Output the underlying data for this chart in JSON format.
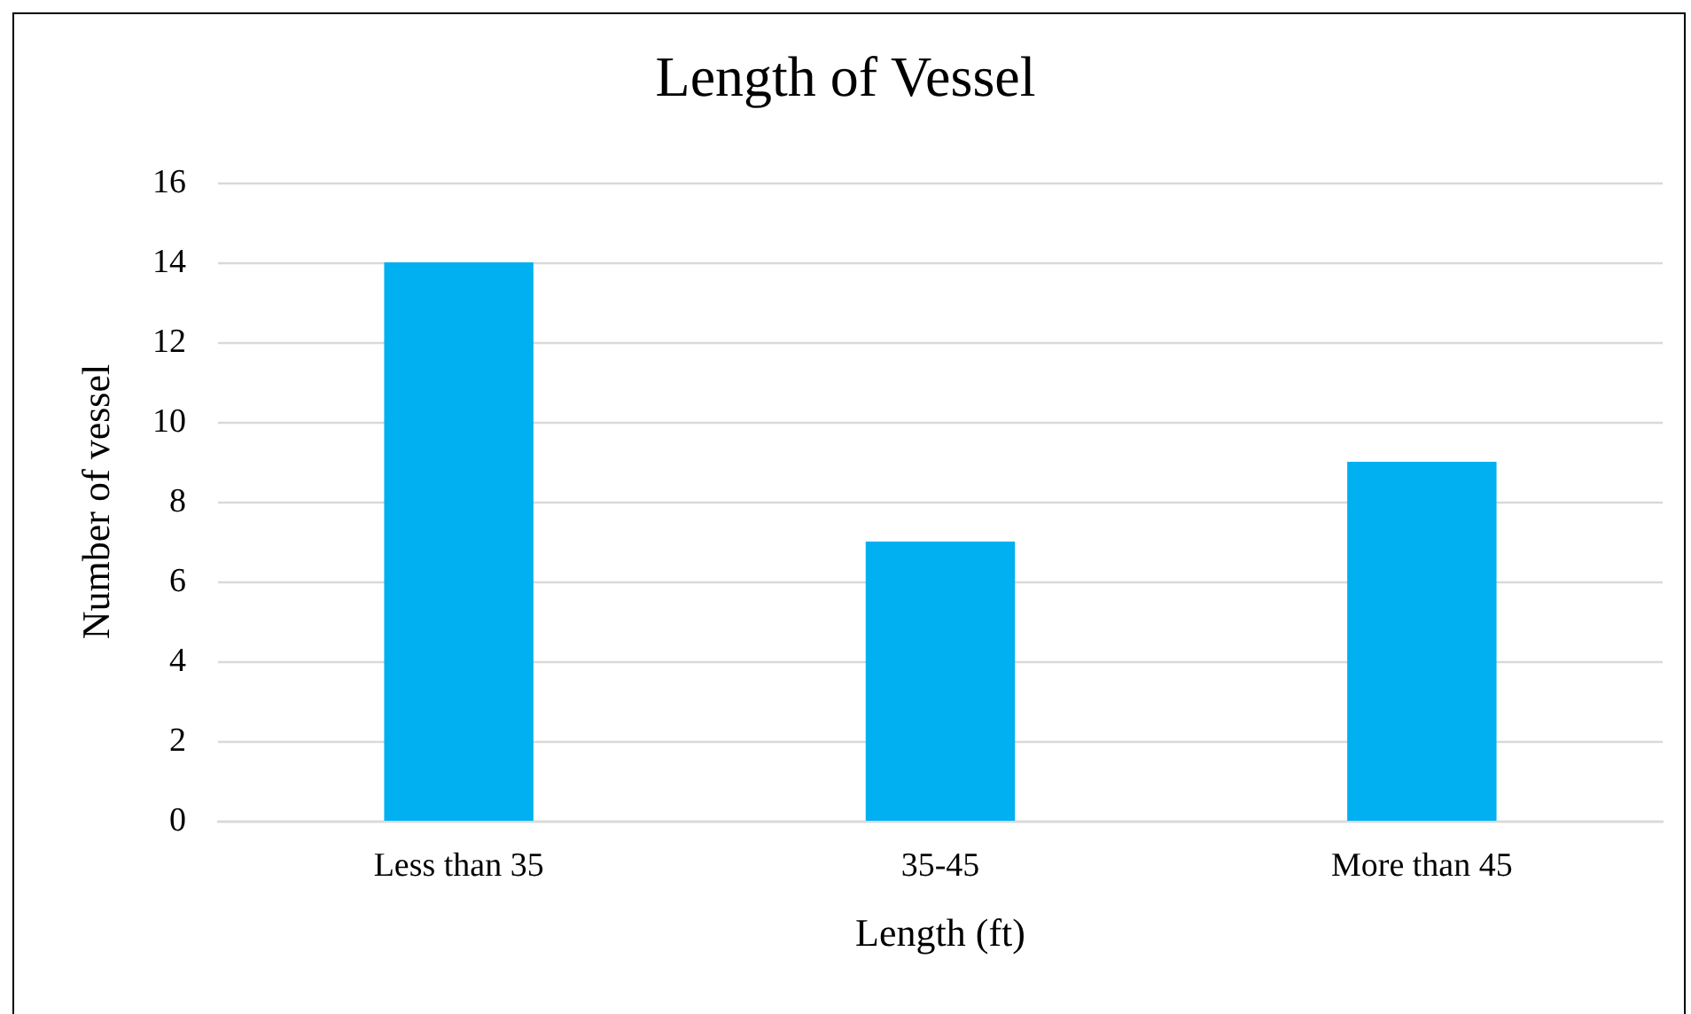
{
  "chart_data": {
    "type": "bar",
    "title": "Length of Vessel",
    "xlabel": "Length (ft)",
    "ylabel": "Number of vessel",
    "categories": [
      "Less than 35",
      "35-45",
      "More than 45"
    ],
    "values": [
      14,
      7,
      9
    ],
    "color": "#00b0f0",
    "ylim": [
      0,
      16
    ],
    "yticks": [
      0,
      2,
      4,
      6,
      8,
      10,
      12,
      14,
      16
    ],
    "grid": "y"
  }
}
